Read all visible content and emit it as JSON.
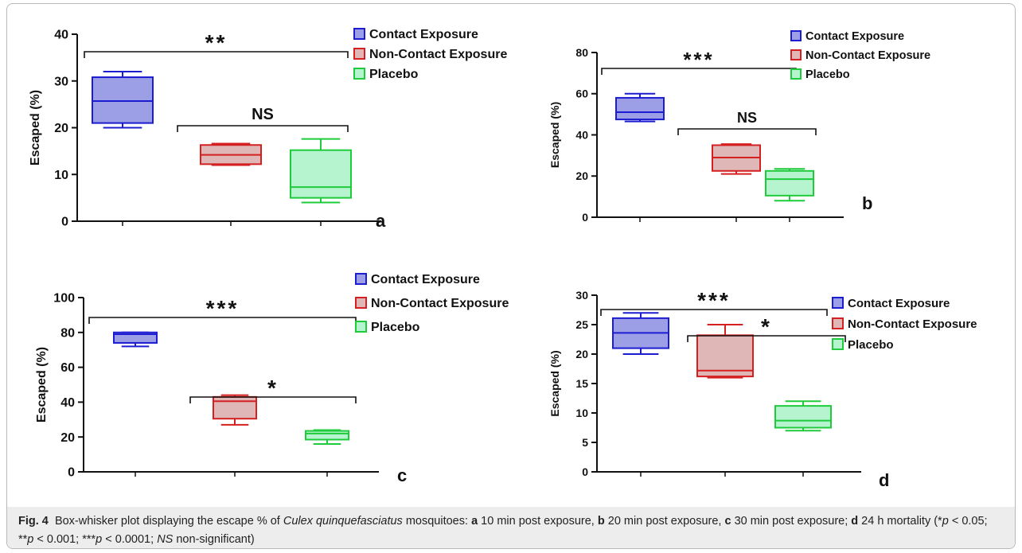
{
  "colors": {
    "contact_fill": "#9c9ee6",
    "contact_stroke": "#1c1cd0",
    "noncontact_fill": "#dfb7b7",
    "noncontact_stroke": "#d42020",
    "placebo_fill": "#b6f4cf",
    "placebo_stroke": "#1ecb3a",
    "axis": "#111111",
    "caption_bg": "#ededed"
  },
  "chart_data": [
    {
      "type": "box",
      "panel_label": "a",
      "ylabel": "Escaped (%)",
      "ylim": [
        0,
        40
      ],
      "yticks": [
        "0",
        "10",
        "20",
        "30",
        "40"
      ],
      "categories": [
        "Contact Exposure",
        "Non-Contact Exposure",
        "Placebo"
      ],
      "legend": [
        "Contact Exposure",
        "Non-Contact Exposure",
        "Placebo"
      ],
      "boxes": [
        {
          "name": "Contact Exposure",
          "min": 20,
          "q1": 21,
          "median": 25.7,
          "q3": 30.8,
          "max": 32
        },
        {
          "name": "Non-Contact Exposure",
          "min": 12,
          "q1": 12.2,
          "median": 14.2,
          "q3": 16.3,
          "max": 16.6
        },
        {
          "name": "Placebo",
          "min": 4,
          "q1": 5,
          "median": 7.3,
          "q3": 15.2,
          "max": 17.6
        }
      ],
      "brackets": [
        {
          "from": 0,
          "to": 2,
          "label": "**"
        },
        {
          "from": 1,
          "to": 2,
          "label": "NS"
        }
      ]
    },
    {
      "type": "box",
      "panel_label": "b",
      "ylabel": "Escaped (%)",
      "ylim": [
        0,
        80
      ],
      "yticks": [
        "0",
        "20",
        "40",
        "60",
        "80"
      ],
      "categories": [
        "Contact Exposure",
        "Non-Contact Exposure",
        "Placebo"
      ],
      "legend": [
        "Contact Exposure",
        "Non-Contact Exposure",
        "Placebo"
      ],
      "boxes": [
        {
          "name": "Contact Exposure",
          "min": 46.5,
          "q1": 47.5,
          "median": 51,
          "q3": 58,
          "max": 60
        },
        {
          "name": "Non-Contact Exposure",
          "min": 21,
          "q1": 22.5,
          "median": 29,
          "q3": 35,
          "max": 35.5
        },
        {
          "name": "Placebo",
          "min": 8,
          "q1": 10.5,
          "median": 18.5,
          "q3": 22.5,
          "max": 23.5
        }
      ],
      "brackets": [
        {
          "from": 0,
          "to": 2,
          "label": "***"
        },
        {
          "from": 1,
          "to": 2,
          "label": "NS"
        }
      ]
    },
    {
      "type": "box",
      "panel_label": "c",
      "ylabel": "Escaped (%)",
      "ylim": [
        0,
        100
      ],
      "yticks": [
        "0",
        "20",
        "40",
        "60",
        "80",
        "100"
      ],
      "categories": [
        "Contact Exposure",
        "Non-Contact Exposure",
        "Placebo"
      ],
      "legend": [
        "Contact Exposure",
        "Non-Contact Exposure",
        "Placebo"
      ],
      "boxes": [
        {
          "name": "Contact Exposure",
          "min": 72,
          "q1": 74,
          "median": 79,
          "q3": 80,
          "max": 80
        },
        {
          "name": "Non-Contact Exposure",
          "min": 27,
          "q1": 30.5,
          "median": 40.5,
          "q3": 43,
          "max": 44
        },
        {
          "name": "Placebo",
          "min": 16,
          "q1": 18.5,
          "median": 22,
          "q3": 23.5,
          "max": 24
        }
      ],
      "brackets": [
        {
          "from": 0,
          "to": 2,
          "label": "***"
        },
        {
          "from": 1,
          "to": 2,
          "label": "*"
        }
      ]
    },
    {
      "type": "box",
      "panel_label": "d",
      "ylabel": "Escaped (%)",
      "ylim": [
        0,
        30
      ],
      "yticks": [
        "0",
        "5",
        "10",
        "15",
        "20",
        "25",
        "30"
      ],
      "categories": [
        "Contact Exposure",
        "Non-Contact Exposure",
        "Placebo"
      ],
      "legend": [
        "Contact Exposure",
        "Non-Contact Exposure",
        "Placebo"
      ],
      "boxes": [
        {
          "name": "Contact Exposure",
          "min": 20,
          "q1": 21,
          "median": 23.6,
          "q3": 26.1,
          "max": 27
        },
        {
          "name": "Non-Contact Exposure",
          "min": 16,
          "q1": 16.2,
          "median": 17.2,
          "q3": 23.2,
          "max": 25
        },
        {
          "name": "Placebo",
          "min": 7,
          "q1": 7.5,
          "median": 8.7,
          "q3": 11.2,
          "max": 12
        }
      ],
      "brackets": [
        {
          "from": 0,
          "to": 2,
          "label": "***"
        },
        {
          "from": 1,
          "to": 2,
          "label": "*"
        }
      ]
    }
  ],
  "caption": {
    "fig_label": "Fig. 4",
    "t1": "Box-whisker plot displaying the escape % of ",
    "species": "Culex quinquefasciatus",
    "t2": " mosquitoes: ",
    "a": "a",
    "t3": " 10 min post exposure, ",
    "b": "b",
    "t4": " 20 min post exposure, ",
    "c": "c",
    "t5": " 30 min post exposure; ",
    "d": "d",
    "t6": " 24 h mortality (*",
    "p1": "p",
    "t7": " < 0.05; **",
    "p2": "p",
    "t8": " < 0.001; ***",
    "p3": "p",
    "t9": " < 0.0001; ",
    "ns": "NS",
    "t10": " non-significant)"
  }
}
